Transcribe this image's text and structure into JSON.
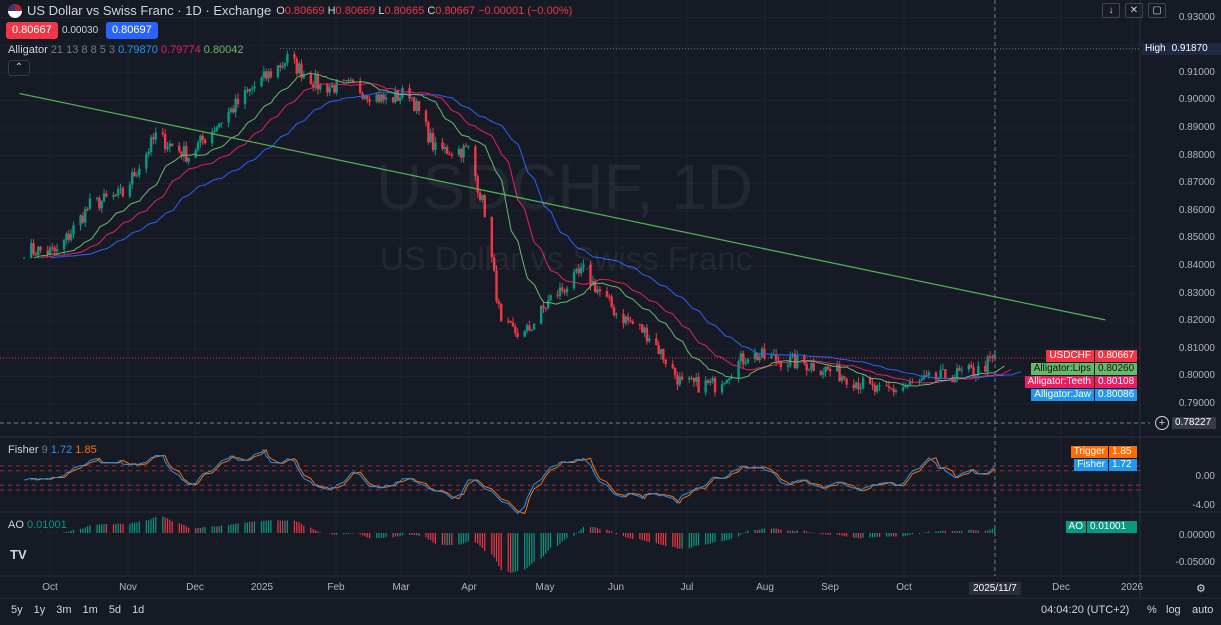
{
  "header": {
    "title": "US Dollar vs Swiss Franc · 1D · Exchange",
    "open_label": "O",
    "open": "0.80669",
    "high_label": "H",
    "high": "0.80669",
    "low_label": "L",
    "low": "0.80665",
    "close_label": "C",
    "close": "0.80667",
    "change": "−0.00001 (−0.00%)",
    "sell_price": "0.80667",
    "spread": "0.00030",
    "buy_price": "0.80697",
    "collapse_icon": "chevron-up-icon"
  },
  "indicators": {
    "alligator": {
      "name": "Alligator",
      "params": "21 13 8 8 5 3",
      "jaw": "0.79870",
      "teeth": "0.79774",
      "lips": "0.80042"
    },
    "fisher": {
      "name": "Fisher",
      "params": "9",
      "fisher": "1.72",
      "trigger": "1.85"
    },
    "ao": {
      "name": "AO",
      "value": "0.01001"
    }
  },
  "watermark": {
    "symbol": "USDCHF, 1D",
    "description": "US Dollar vs Swiss Franc"
  },
  "price_axis": {
    "ticks": [
      "0.93000",
      "0.91000",
      "0.90000",
      "0.89000",
      "0.88000",
      "0.87000",
      "0.86000",
      "0.85000",
      "0.84000",
      "0.83000",
      "0.82000",
      "0.81000",
      "0.80000",
      "0.79000"
    ],
    "fisher_ticks": [
      "0.00",
      "-4.00"
    ],
    "ao_ticks": [
      "0.00000",
      "-0.05000"
    ]
  },
  "tags": {
    "high_label": "High",
    "high_value": "0.91870",
    "symbol_label": "USDCHF",
    "symbol_value": "0.80667",
    "lips_label": "Alligator:Lips",
    "lips_value": "0.80260",
    "teeth_label": "Alligator:Teeth",
    "teeth_value": "0.80108",
    "jaw_label": "Alligator:Jaw",
    "jaw_value": "0.80086",
    "low_value": "0.78227",
    "trigger_label": "Trigger",
    "trigger_value": "1.85",
    "fisher_label": "Fisher",
    "fisher_value": "1.72",
    "ao_label": "AO",
    "ao_value": "0.01001"
  },
  "time_axis": {
    "labels": [
      "Oct",
      "Nov",
      "Dec",
      "2025",
      "Feb",
      "Mar",
      "Apr",
      "May",
      "Jun",
      "Jul",
      "Aug",
      "Sep",
      "Oct",
      "2025/11/7",
      "Dec",
      "2026"
    ]
  },
  "bottom_bar": {
    "ranges": [
      "5y",
      "1y",
      "3m",
      "1m",
      "5d",
      "1d"
    ],
    "clock": "04:04:20 (UTC+2)",
    "percent": "%",
    "log": "log",
    "auto": "auto"
  },
  "colors": {
    "up": "#089981",
    "down": "#f23645",
    "jaw": "#2962ff",
    "teeth": "#e91e63",
    "lips": "#66bb6a",
    "trendline": "#4caf50",
    "fisher": "#2196f3",
    "trigger": "#ff6d00"
  },
  "chart_data": {
    "type": "candlestick",
    "x_unit": "date",
    "y_range": [
      0.785,
      0.93
    ],
    "weekly_close_estimates": [
      [
        "2024-09-20",
        0.846
      ],
      [
        "2024-10-04",
        0.845
      ],
      [
        "2024-10-18",
        0.862
      ],
      [
        "2024-11-01",
        0.866
      ],
      [
        "2024-11-15",
        0.887
      ],
      [
        "2024-11-29",
        0.88
      ],
      [
        "2024-12-13",
        0.893
      ],
      [
        "2024-12-27",
        0.905
      ],
      [
        "2025-01-10",
        0.915
      ],
      [
        "2025-01-24",
        0.905
      ],
      [
        "2025-02-07",
        0.905
      ],
      [
        "2025-02-21",
        0.9
      ],
      [
        "2025-03-03",
        0.903
      ],
      [
        "2025-03-14",
        0.882
      ],
      [
        "2025-03-28",
        0.882
      ],
      [
        "2025-04-04",
        0.86
      ],
      [
        "2025-04-11",
        0.818
      ],
      [
        "2025-04-21",
        0.815
      ],
      [
        "2025-05-02",
        0.828
      ],
      [
        "2025-05-16",
        0.838
      ],
      [
        "2025-05-30",
        0.823
      ],
      [
        "2025-06-13",
        0.815
      ],
      [
        "2025-06-27",
        0.797
      ],
      [
        "2025-07-11",
        0.797
      ],
      [
        "2025-07-25",
        0.808
      ],
      [
        "2025-08-08",
        0.806
      ],
      [
        "2025-08-22",
        0.804
      ],
      [
        "2025-09-05",
        0.8
      ],
      [
        "2025-09-19",
        0.794
      ],
      [
        "2025-10-03",
        0.797
      ],
      [
        "2025-10-17",
        0.8
      ],
      [
        "2025-10-31",
        0.802
      ],
      [
        "2025-11-07",
        0.8067
      ]
    ],
    "trendline": [
      [
        "2024-09-18",
        0.9025
      ],
      [
        "2025-12-24",
        0.8205
      ]
    ]
  }
}
